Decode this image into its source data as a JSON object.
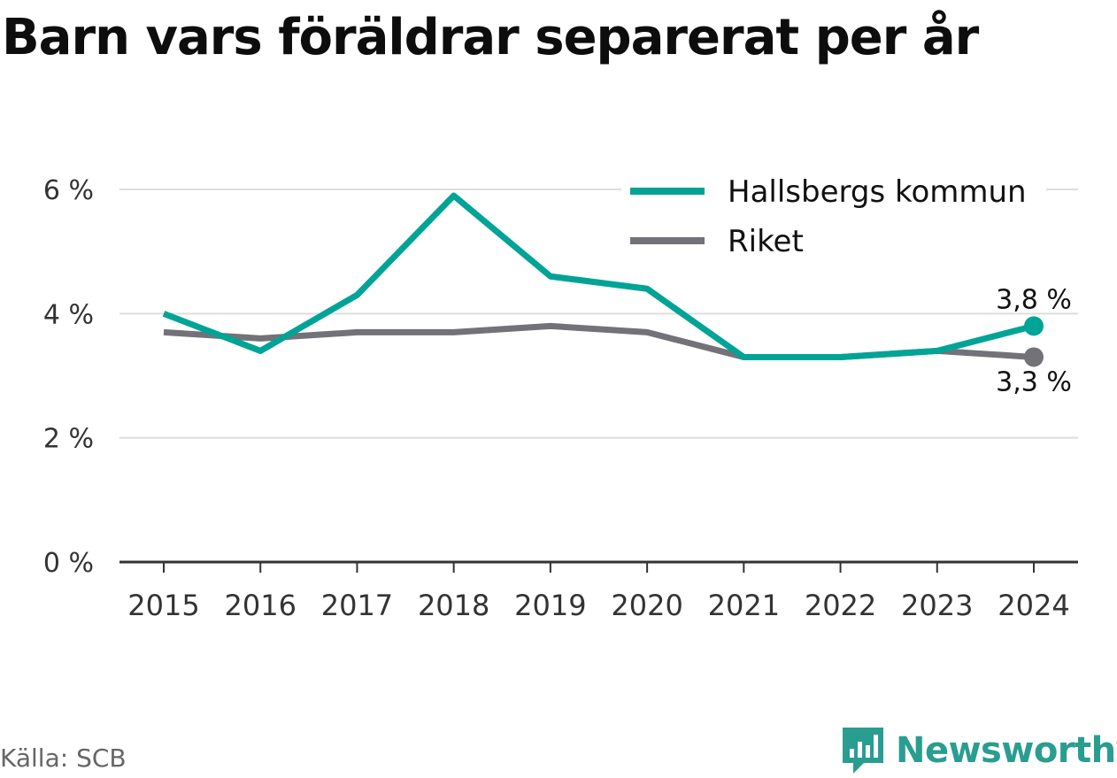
{
  "title": "Barn vars föräldrar separerat per år",
  "source": "Källa: SCB",
  "brand": {
    "name": "Newsworthy",
    "icon": "newsworthy-logo-icon"
  },
  "colors": {
    "hallsberg": "#00a497",
    "riket": "#737278",
    "grid": "#dddddd",
    "axis": "#333333",
    "brand": "#2a9d91"
  },
  "chart_data": {
    "type": "line",
    "title": "Barn vars föräldrar separerat per år",
    "xlabel": "",
    "ylabel": "",
    "x": [
      "2015",
      "2016",
      "2017",
      "2018",
      "2019",
      "2020",
      "2021",
      "2022",
      "2023",
      "2024"
    ],
    "ylim": [
      0,
      6
    ],
    "yticks": [
      0,
      2,
      4,
      6
    ],
    "ytick_labels": [
      "0 %",
      "2 %",
      "4 %",
      "6 %"
    ],
    "grid": true,
    "legend_position": "top-right",
    "series": [
      {
        "name": "Hallsbergs kommun",
        "color": "#00a497",
        "values": [
          4.0,
          3.4,
          4.3,
          5.9,
          4.6,
          4.4,
          3.3,
          3.3,
          3.4,
          3.8
        ],
        "end_label": "3,8 %"
      },
      {
        "name": "Riket",
        "color": "#737278",
        "values": [
          3.7,
          3.6,
          3.7,
          3.7,
          3.8,
          3.7,
          3.3,
          3.3,
          3.4,
          3.3
        ],
        "end_label": "3,3 %"
      }
    ]
  }
}
